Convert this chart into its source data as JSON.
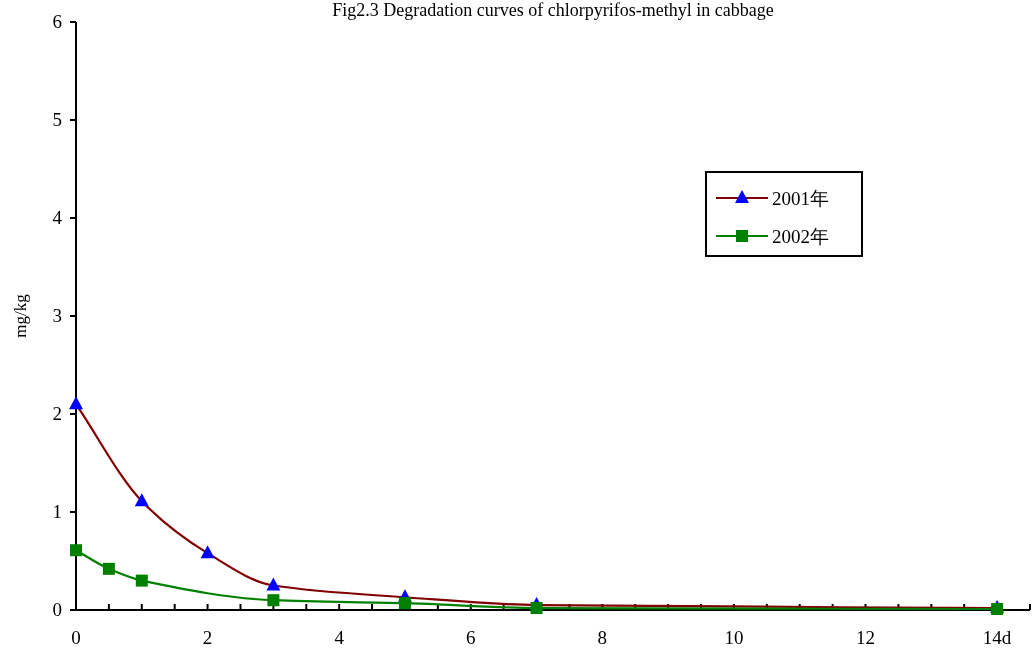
{
  "chart_data": {
    "type": "line",
    "title": "Fig2.3 Degradation curves of chlorpyrifos-methyl in cabbage",
    "ylabel": "mg/kg",
    "xlim": [
      0,
      14.5
    ],
    "ylim": [
      0,
      6
    ],
    "xticks": [
      0,
      {
        "value": 0.5,
        "label": null
      },
      {
        "value": 1,
        "label": null
      },
      {
        "value": 1.5,
        "label": null
      },
      2,
      {
        "value": 2.5,
        "label": null
      },
      {
        "value": 3,
        "label": null
      },
      {
        "value": 3.5,
        "label": null
      },
      4,
      {
        "value": 4.5,
        "label": null
      },
      {
        "value": 5,
        "label": null
      },
      {
        "value": 5.5,
        "label": null
      },
      6,
      {
        "value": 6.5,
        "label": null
      },
      {
        "value": 7,
        "label": null
      },
      {
        "value": 7.5,
        "label": null
      },
      8,
      {
        "value": 8.5,
        "label": null
      },
      {
        "value": 9,
        "label": null
      },
      {
        "value": 9.5,
        "label": null
      },
      10,
      {
        "value": 10.5,
        "label": null
      },
      {
        "value": 11,
        "label": null
      },
      {
        "value": 11.5,
        "label": null
      },
      12,
      {
        "value": 12.5,
        "label": null
      },
      {
        "value": 13,
        "label": null
      },
      {
        "value": 13.5,
        "label": null
      },
      {
        "value": 14,
        "label": "14d"
      },
      {
        "value": 14.5,
        "label": null
      }
    ],
    "yticks": [
      0,
      1,
      2,
      3,
      4,
      5,
      6
    ],
    "grid": false,
    "legend": "top right",
    "series": [
      {
        "name": "2001年",
        "color": "#800000",
        "colors": [
          "#0000ff",
          "#0000ff",
          "#0000ff",
          "#0000ff",
          "#0000ff",
          "#0000ff",
          "#0000ff"
        ],
        "marker": "triangle",
        "x": [
          0,
          1,
          2,
          3,
          5,
          7,
          14
        ],
        "values": [
          2.1,
          1.11,
          0.58,
          0.25,
          0.13,
          0.05,
          0.02
        ]
      },
      {
        "name": "2002年",
        "color": "#008000",
        "marker": "square",
        "x": [
          0,
          0.5,
          1,
          3,
          5,
          7,
          14
        ],
        "values": [
          0.61,
          0.42,
          0.3,
          0.1,
          0.07,
          0.02,
          0.01
        ]
      }
    ]
  }
}
